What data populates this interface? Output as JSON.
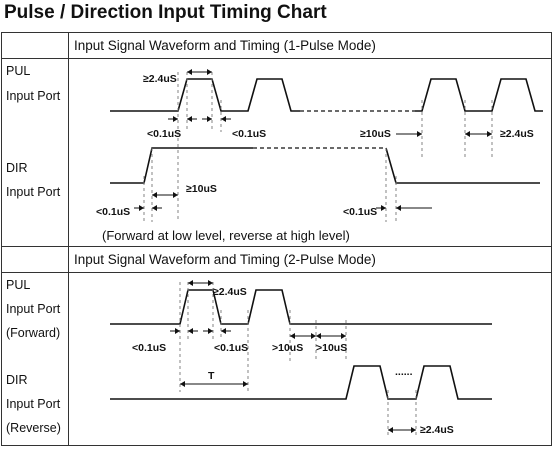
{
  "title": "Pulse / Direction Input Timing Chart",
  "section1": {
    "header": "Input Signal Waveform and Timing (1-Pulse Mode)",
    "pul_label": [
      "PUL",
      "Input Port"
    ],
    "dir_label": [
      "DIR",
      "Input Port"
    ],
    "ann": {
      "pulse_width": "≥2.4uS",
      "rise_time": "<0.1uS",
      "fall_time": "<0.1uS",
      "pulse_gap": "≥10uS",
      "pulse_low": "≥2.4uS",
      "dir_setup": "≥10uS",
      "dir_rise": "<0.1uS",
      "dir_fall": "<0.1uS"
    },
    "note": "(Forward at low level, reverse at high level)"
  },
  "section2": {
    "header": "Input Signal Waveform and Timing (2-Pulse Mode)",
    "pul_label": [
      "PUL",
      "Input Port",
      "(Forward)"
    ],
    "dir_label": [
      "DIR",
      "Input Port",
      "(Reverse)"
    ],
    "ann": {
      "pulse_width": "≥2.4uS",
      "rise_time": "<0.1uS",
      "fall_time": "<0.1uS",
      "gap_a": ">10uS",
      "gap_b": ">10uS",
      "period": "T",
      "ellipsis": "......",
      "dir_low": "≥2.4uS"
    }
  }
}
